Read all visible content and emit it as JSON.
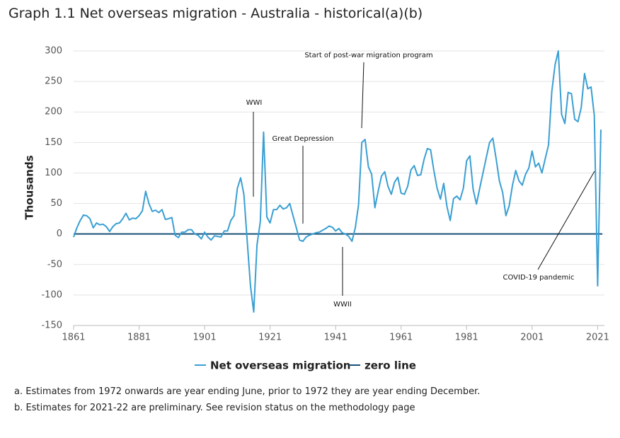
{
  "chart_data": {
    "type": "line",
    "title": "Graph 1.1 Net overseas migration - Australia - historical(a)(b)",
    "y_label": "Thousands",
    "x": [
      1861,
      1862,
      1863,
      1864,
      1865,
      1866,
      1867,
      1868,
      1869,
      1870,
      1871,
      1872,
      1873,
      1874,
      1875,
      1876,
      1877,
      1878,
      1879,
      1880,
      1881,
      1882,
      1883,
      1884,
      1885,
      1886,
      1887,
      1888,
      1889,
      1890,
      1891,
      1892,
      1893,
      1894,
      1895,
      1896,
      1897,
      1898,
      1899,
      1900,
      1901,
      1902,
      1903,
      1904,
      1905,
      1906,
      1907,
      1908,
      1909,
      1910,
      1911,
      1912,
      1913,
      1914,
      1915,
      1916,
      1917,
      1918,
      1919,
      1920,
      1921,
      1922,
      1923,
      1924,
      1925,
      1926,
      1927,
      1928,
      1929,
      1930,
      1931,
      1932,
      1933,
      1934,
      1935,
      1936,
      1937,
      1938,
      1939,
      1940,
      1941,
      1942,
      1943,
      1944,
      1945,
      1946,
      1947,
      1948,
      1949,
      1950,
      1951,
      1952,
      1953,
      1954,
      1955,
      1956,
      1957,
      1958,
      1959,
      1960,
      1961,
      1962,
      1963,
      1964,
      1965,
      1966,
      1967,
      1968,
      1969,
      1970,
      1971,
      1972,
      1973,
      1974,
      1975,
      1976,
      1977,
      1978,
      1979,
      1980,
      1981,
      1982,
      1983,
      1984,
      1985,
      1986,
      1987,
      1988,
      1989,
      1990,
      1991,
      1992,
      1993,
      1994,
      1995,
      1996,
      1997,
      1998,
      1999,
      2000,
      2001,
      2002,
      2003,
      2004,
      2005,
      2006,
      2007,
      2008,
      2009,
      2010,
      2011,
      2012,
      2013,
      2014,
      2015,
      2016,
      2017,
      2018,
      2019,
      2020,
      2021,
      2022
    ],
    "series": [
      {
        "name": "Net overseas migration",
        "color": "#3a9fd3",
        "values": [
          -5,
          10,
          22,
          31,
          30,
          25,
          10,
          18,
          15,
          16,
          12,
          4,
          12,
          17,
          18,
          25,
          34,
          23,
          26,
          25,
          30,
          38,
          70,
          50,
          37,
          39,
          35,
          40,
          24,
          25,
          27,
          -2,
          -6,
          3,
          3,
          7,
          7,
          0,
          -2,
          -8,
          3,
          -5,
          -10,
          -3,
          -4,
          -5,
          5,
          5,
          22,
          30,
          75,
          92,
          65,
          -10,
          -85,
          -128,
          -18,
          20,
          167,
          28,
          18,
          40,
          40,
          47,
          41,
          43,
          50,
          30,
          10,
          -10,
          -12,
          -5,
          -2,
          0,
          2,
          3,
          6,
          9,
          13,
          11,
          5,
          9,
          2,
          0,
          -4,
          -12,
          10,
          48,
          150,
          155,
          110,
          98,
          43,
          70,
          95,
          102,
          78,
          65,
          85,
          93,
          67,
          65,
          78,
          105,
          112,
          96,
          97,
          122,
          140,
          138,
          104,
          75,
          57,
          83,
          45,
          22,
          58,
          62,
          56,
          75,
          120,
          128,
          73,
          49,
          75,
          100,
          125,
          150,
          157,
          124,
          87,
          68,
          30,
          46,
          80,
          104,
          87,
          80,
          98,
          108,
          136,
          110,
          116,
          100,
          123,
          146,
          233,
          277,
          300,
          196,
          181,
          232,
          230,
          188,
          184,
          207,
          263,
          238,
          241,
          194,
          -85,
          171
        ]
      },
      {
        "name": "zero line",
        "color": "#174f78",
        "value": 0
      }
    ],
    "xlim": [
      1861,
      2022
    ],
    "ylim": [
      -150,
      300
    ],
    "xticks": [
      1861,
      1881,
      1901,
      1921,
      1941,
      1961,
      1981,
      2001,
      2021
    ],
    "yticks": [
      -150,
      -100,
      -50,
      0,
      50,
      100,
      150,
      200,
      250,
      300
    ],
    "grid": true,
    "legend": "bottom",
    "annotations": [
      "WWI",
      "Great Depression",
      "Start of post-war migration program",
      "WWII",
      "COVID-19 pandemic"
    ]
  },
  "footnotes": [
    "a.  Estimates from 1972 onwards are year ending June, prior to 1972 they are year ending December.",
    "b.  Estimates for 2021-22 are preliminary. See revision status on the methodology page"
  ]
}
